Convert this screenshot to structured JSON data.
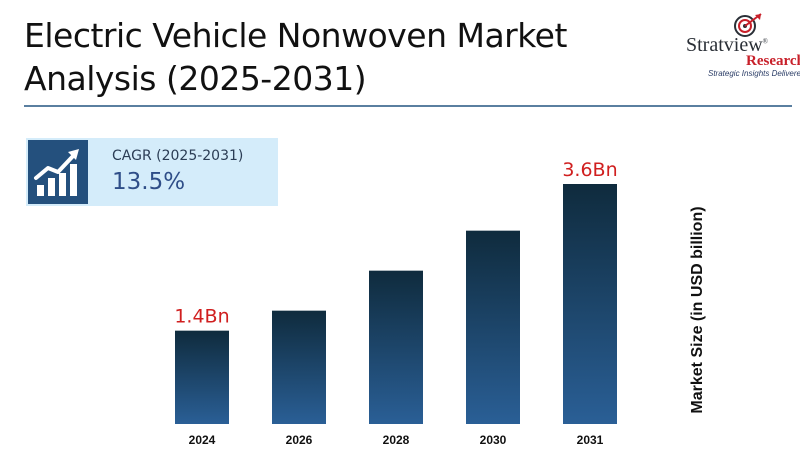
{
  "header": {
    "title_line1": "Electric Vehicle Nonwoven Market",
    "title_line2": "Analysis (2025-2031)"
  },
  "logo": {
    "brand": "Stratview",
    "registered": "®",
    "sub": "Research",
    "tagline": "Strategic Insights Delivered"
  },
  "cagr": {
    "label": "CAGR (2025-2031)",
    "value": "13.5%",
    "icon": "growth-chart-icon"
  },
  "colors": {
    "bar_top": "#0f2b3d",
    "bar_bottom": "#2a5f96",
    "label_red": "#d01f1f",
    "cagr_box": "#d4ecfa",
    "cagr_icon_bg": "#24507d"
  },
  "chart_data": {
    "type": "bar",
    "categories": [
      "2024",
      "2026",
      "2028",
      "2030",
      "2031"
    ],
    "values": [
      1.4,
      1.7,
      2.3,
      2.9,
      3.6
    ],
    "data_labels": [
      "1.4Bn",
      "",
      "",
      "",
      "3.6Bn"
    ],
    "ylabel": "Market Size (in USD billion)",
    "ylim": [
      0,
      3.6
    ],
    "grid": false,
    "legend": "none"
  }
}
